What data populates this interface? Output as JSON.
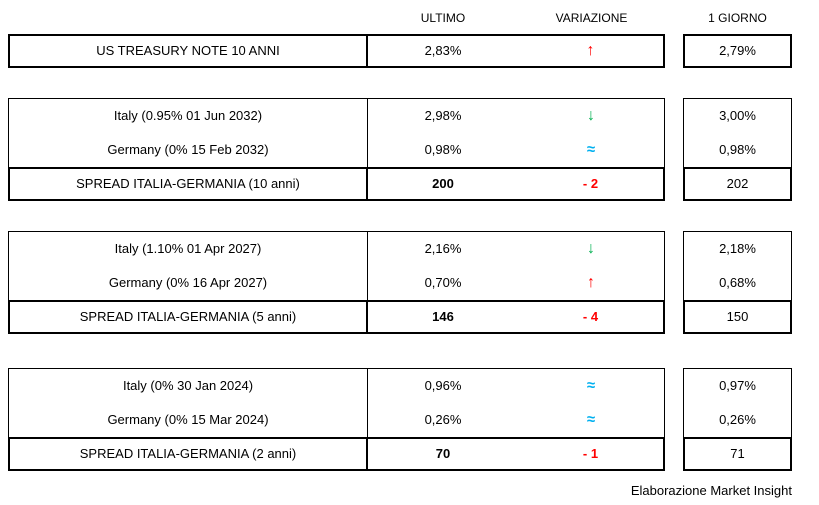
{
  "colors": {
    "up": "#ff0000",
    "down": "#00b050",
    "flat": "#00b0f0",
    "negative": "#ff0000"
  },
  "headers": {
    "ultimo": "ULTIMO",
    "variazione": "VARIAZIONE",
    "giorno": "1 GIORNO"
  },
  "treasury": {
    "label": "US TREASURY NOTE 10 ANNI",
    "ultimo": "2,83%",
    "symbol": "↑",
    "dir": "up",
    "giorno": "2,79%"
  },
  "tables": [
    {
      "rows": [
        {
          "label": "Italy (0.95% 01 Jun 2032)",
          "ultimo": "2,98%",
          "symbol": "↓",
          "dir": "down",
          "giorno": "3,00%"
        },
        {
          "label": "Germany (0% 15 Feb 2032)",
          "ultimo": "0,98%",
          "symbol": "≈",
          "dir": "flat",
          "giorno": "0,98%"
        }
      ],
      "spread": {
        "label": "SPREAD ITALIA-GERMANIA (10 anni)",
        "ultimo": "200",
        "variazione": "- 2",
        "giorno": "202"
      }
    },
    {
      "rows": [
        {
          "label": "Italy (1.10% 01 Apr 2027)",
          "ultimo": "2,16%",
          "symbol": "↓",
          "dir": "down",
          "giorno": "2,18%"
        },
        {
          "label": "Germany (0% 16 Apr 2027)",
          "ultimo": "0,70%",
          "symbol": "↑",
          "dir": "up",
          "giorno": "0,68%"
        }
      ],
      "spread": {
        "label": "SPREAD ITALIA-GERMANIA (5 anni)",
        "ultimo": "146",
        "variazione": "- 4",
        "giorno": "150"
      }
    },
    {
      "rows": [
        {
          "label": "Italy (0% 30 Jan 2024)",
          "ultimo": "0,96%",
          "symbol": "≈",
          "dir": "flat",
          "giorno": "0,97%"
        },
        {
          "label": "Germany (0% 15 Mar 2024)",
          "ultimo": "0,26%",
          "symbol": "≈",
          "dir": "flat",
          "giorno": "0,26%"
        }
      ],
      "spread": {
        "label": "SPREAD ITALIA-GERMANIA (2 anni)",
        "ultimo": "70",
        "variazione": "- 1",
        "giorno": "71"
      }
    }
  ],
  "footer": "Elaborazione Market Insight"
}
